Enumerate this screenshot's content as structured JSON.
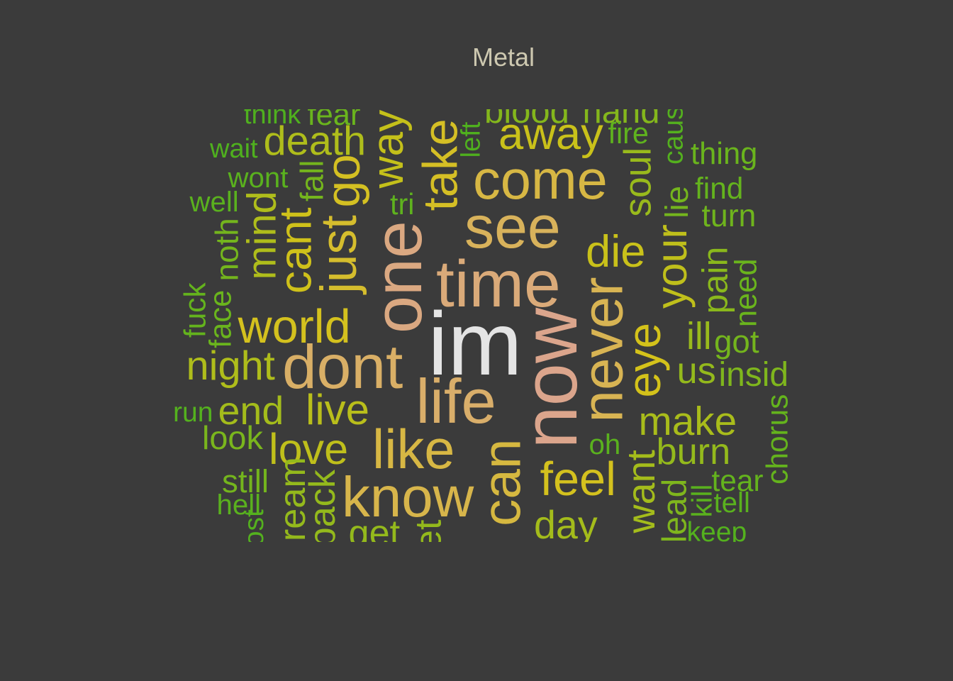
{
  "chart_data": {
    "type": "wordcloud",
    "title": "Metal",
    "color_scale": {
      "low": "#4fb01e",
      "mid": "#d4c21a",
      "high": "#dba58c",
      "top": "#e4e4e4"
    },
    "words": [
      {
        "text": "im",
        "weight": 100
      },
      {
        "text": "now",
        "weight": 84
      },
      {
        "text": "one",
        "weight": 72
      },
      {
        "text": "time",
        "weight": 70
      },
      {
        "text": "life",
        "weight": 66
      },
      {
        "text": "dont",
        "weight": 65
      },
      {
        "text": "see",
        "weight": 62
      },
      {
        "text": "never",
        "weight": 60
      },
      {
        "text": "know",
        "weight": 58
      },
      {
        "text": "come",
        "weight": 56
      },
      {
        "text": "like",
        "weight": 56
      },
      {
        "text": "can",
        "weight": 55
      },
      {
        "text": "just",
        "weight": 50
      },
      {
        "text": "take",
        "weight": 48
      },
      {
        "text": "go",
        "weight": 47
      },
      {
        "text": "world",
        "weight": 46
      },
      {
        "text": "feel",
        "weight": 46
      },
      {
        "text": "eye",
        "weight": 45
      },
      {
        "text": "cant",
        "weight": 44
      },
      {
        "text": "away",
        "weight": 43
      },
      {
        "text": "die",
        "weight": 43
      },
      {
        "text": "way",
        "weight": 42
      },
      {
        "text": "your",
        "weight": 41
      },
      {
        "text": "love",
        "weight": 41
      },
      {
        "text": "live",
        "weight": 40
      },
      {
        "text": "night",
        "weight": 38
      },
      {
        "text": "death",
        "weight": 38
      },
      {
        "text": "mind",
        "weight": 38
      },
      {
        "text": "make",
        "weight": 37
      },
      {
        "text": "end",
        "weight": 36
      },
      {
        "text": "day",
        "weight": 36
      },
      {
        "text": "want",
        "weight": 36
      },
      {
        "text": "soul",
        "weight": 34
      },
      {
        "text": "ill",
        "weight": 34
      },
      {
        "text": "us",
        "weight": 33
      },
      {
        "text": "burn",
        "weight": 33
      },
      {
        "text": "dream",
        "weight": 33
      },
      {
        "text": "back",
        "weight": 33
      },
      {
        "text": "get",
        "weight": 33
      },
      {
        "text": "let",
        "weight": 33
      },
      {
        "text": "pain",
        "weight": 31
      },
      {
        "text": "blood",
        "weight": 30
      },
      {
        "text": "hand",
        "weight": 30
      },
      {
        "text": "insid",
        "weight": 29
      },
      {
        "text": "lead",
        "weight": 29
      },
      {
        "text": "look",
        "weight": 28
      },
      {
        "text": "noth",
        "weight": 27
      },
      {
        "text": "lie",
        "weight": 27
      },
      {
        "text": "still",
        "weight": 27
      },
      {
        "text": "got",
        "weight": 27
      },
      {
        "text": "fall",
        "weight": 27
      },
      {
        "text": "turn",
        "weight": 26
      },
      {
        "text": "thing",
        "weight": 25
      },
      {
        "text": "fear",
        "weight": 25
      },
      {
        "text": "face",
        "weight": 25
      },
      {
        "text": "need",
        "weight": 25
      },
      {
        "text": "fuck",
        "weight": 24
      },
      {
        "text": "find",
        "weight": 24
      },
      {
        "text": "tear",
        "weight": 24
      },
      {
        "text": "chorus",
        "weight": 24
      },
      {
        "text": "fire",
        "weight": 23
      },
      {
        "text": "tri",
        "weight": 23
      },
      {
        "text": "wont",
        "weight": 22
      },
      {
        "text": "well",
        "weight": 22
      },
      {
        "text": "kill",
        "weight": 22
      },
      {
        "text": "hell",
        "weight": 22
      },
      {
        "text": "tell",
        "weight": 22
      },
      {
        "text": "oh",
        "weight": 22
      },
      {
        "text": "lost",
        "weight": 21
      },
      {
        "text": "run",
        "weight": 21
      },
      {
        "text": "keep",
        "weight": 21
      },
      {
        "text": "caus",
        "weight": 21
      },
      {
        "text": "think",
        "weight": 20
      },
      {
        "text": "wait",
        "weight": 20
      },
      {
        "text": "left",
        "weight": 20
      }
    ]
  }
}
